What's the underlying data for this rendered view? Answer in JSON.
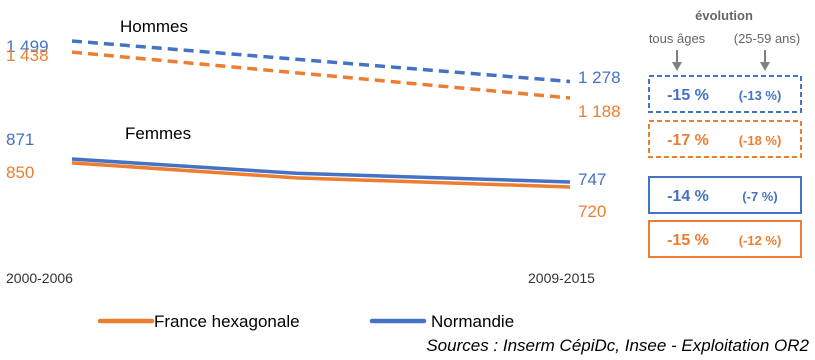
{
  "chart_data": {
    "type": "line",
    "x": [
      "2000-2006",
      "2009-2015"
    ],
    "ylim": [
      0,
      1600
    ],
    "grid": false,
    "legend_position": "bottom",
    "colors": {
      "france": "#ED7D31",
      "normandie": "#4472C4"
    },
    "groups": [
      {
        "label": "Hommes",
        "line_style": "dashed",
        "series": [
          {
            "name": "Normandie",
            "values": [
              1499,
              1278
            ],
            "start_label": "1 499",
            "end_label": "1 278"
          },
          {
            "name": "France hexagonale",
            "values": [
              1438,
              1188
            ],
            "start_label": "1 438",
            "end_label": "1 188"
          }
        ]
      },
      {
        "label": "Femmes",
        "line_style": "solid",
        "series": [
          {
            "name": "Normandie",
            "values": [
              871,
              747
            ],
            "start_label": "871",
            "end_label": "747"
          },
          {
            "name": "France hexagonale",
            "values": [
              850,
              720
            ],
            "start_label": "850",
            "end_label": "720"
          }
        ]
      }
    ],
    "evolution": {
      "title": "évolution",
      "col1": "tous âges",
      "col2": "(25-59 ans)",
      "boxes": [
        {
          "group": "Hommes",
          "series": "Normandie",
          "all_ages": "-15 %",
          "ages_25_59": "(-13 %)",
          "style": "dashed"
        },
        {
          "group": "Hommes",
          "series": "France hexagonale",
          "all_ages": "-17 %",
          "ages_25_59": "(-18 %)",
          "style": "dashed"
        },
        {
          "group": "Femmes",
          "series": "Normandie",
          "all_ages": "-14 %",
          "ages_25_59": "(-7 %)",
          "style": "solid"
        },
        {
          "group": "Femmes",
          "series": "France hexagonale",
          "all_ages": "-15 %",
          "ages_25_59": "(-12 %)",
          "style": "solid"
        }
      ]
    },
    "legend": [
      "France hexagonale",
      "Normandie"
    ]
  },
  "source": "Sources : Inserm CépiDc, Insee  -  Exploitation OR2"
}
